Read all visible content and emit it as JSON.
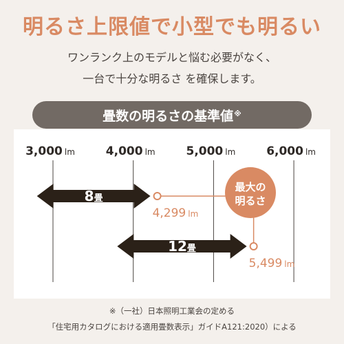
{
  "headline": "明るさ上限値で小型でも明るい",
  "subtext": {
    "line1": "ワンランク上のモデルと悩む必要がなく、",
    "line2": "一台で十分な明るさ を確保します。"
  },
  "banner": {
    "title": "畳数の明るさの基準値",
    "mark": "※"
  },
  "footnote": {
    "line1": "※（一社）日本照明工業会の定める",
    "line2": "「住宅用カタログにおける適用畳数表示」ガイドA121:2020）による"
  },
  "colors": {
    "accent": "#d98a63",
    "banner": "#726a64",
    "arrow": "#2b2118",
    "gridline": "#4a4440"
  },
  "chart_data": {
    "type": "range",
    "unit": "lm",
    "ticks": [
      {
        "value": 3000,
        "label": "3,000"
      },
      {
        "value": 4000,
        "label": "4,000"
      },
      {
        "value": 5000,
        "label": "5,000"
      },
      {
        "value": 6000,
        "label": "6,000"
      }
    ],
    "xlim": [
      3000,
      6000
    ],
    "ranges": [
      {
        "name": "8畳",
        "num": "8",
        "suffix": "畳",
        "from": 2800,
        "to": 4299,
        "max_label": "4,299"
      },
      {
        "name": "12畳",
        "num": "12",
        "suffix": "畳",
        "from": 3800,
        "to": 5499,
        "max_label": "5,499"
      }
    ],
    "callout": {
      "line1": "最大の",
      "line2": "明るさ"
    }
  }
}
